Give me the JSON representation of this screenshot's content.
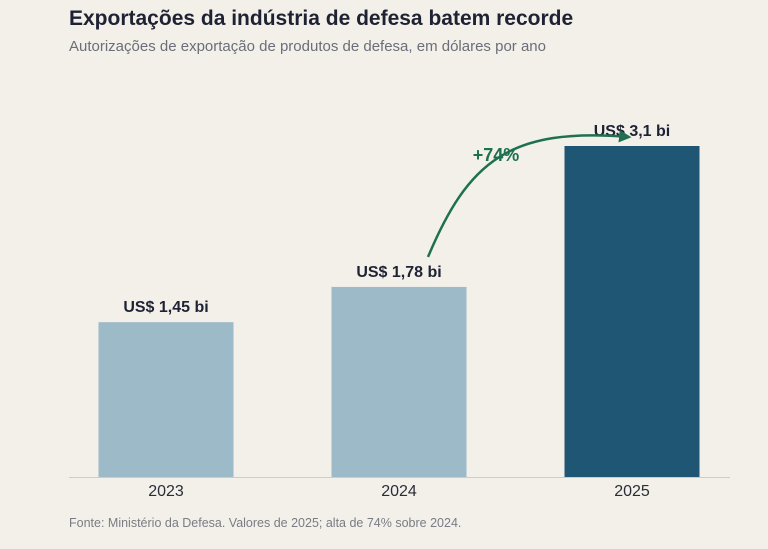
{
  "chart_data": {
    "type": "bar",
    "title": "Exportações da indústria de defesa batem recorde",
    "subtitle": "Autorizações de exportação de produtos de defesa, em dólares por ano",
    "categories": [
      "2023",
      "2024",
      "2025"
    ],
    "values": [
      1.45,
      1.78,
      3.1
    ],
    "value_labels": [
      "US$ 1,45 bi",
      "US$ 1,78 bi",
      "US$ 3,1 bi"
    ],
    "ylim": [
      0,
      3.1
    ],
    "xlabel": "",
    "ylabel": "",
    "grid": false,
    "highlight_index": 2,
    "annotation": {
      "text": "+74%",
      "from": "2024",
      "to": "2025"
    },
    "source": "Fonte: Ministério da Defesa.  Valores de 2025; alta de 74% sobre 2024."
  },
  "colors": {
    "background": "#f3f0ea",
    "bar": "#9cbac7",
    "bar_highlight": "#1f5673",
    "arrow": "#1e7050",
    "axis": "#cfccc5"
  }
}
